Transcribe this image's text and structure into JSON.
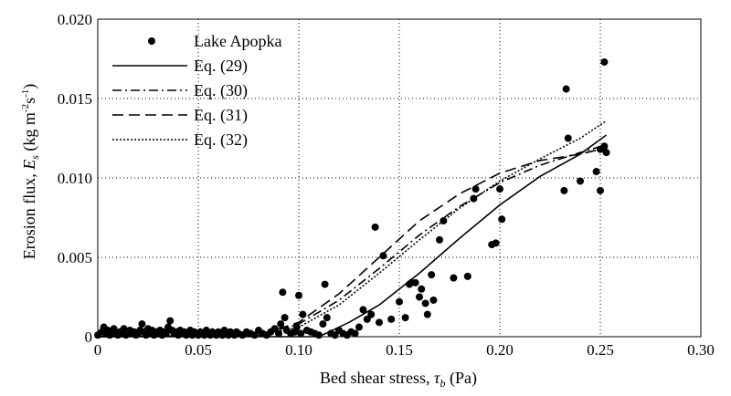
{
  "chart_data": {
    "type": "scatter",
    "title": "",
    "xlabel": "Bed shear stress, τb (Pa)",
    "xlabel_main": "Bed shear stress, ",
    "xlabel_sym": "τ",
    "xlabel_sub": "b",
    "xlabel_unit": " (Pa)",
    "ylabel": "Erosion flux, Es (kg m-2 s-1)",
    "ylabel_main": "Erosion flux, ",
    "ylabel_sym": "E",
    "ylabel_sub": "s",
    "ylabel_unit_pre": " (kg m",
    "ylabel_sup1": "-2",
    "ylabel_mid": "s",
    "ylabel_sup2": "-1",
    "ylabel_end": ")",
    "xlim": [
      0,
      0.3
    ],
    "ylim": [
      0,
      0.02
    ],
    "xticks": [
      "0",
      "0.05",
      "0.10",
      "0.15",
      "0.20",
      "0.25",
      "0.30"
    ],
    "yticks": [
      "0",
      "0.005",
      "0.010",
      "0.015",
      "0.020"
    ],
    "grid": "dotted",
    "legend_position": "top-left",
    "series": [
      {
        "name": "Lake Apopka",
        "style": "points",
        "points": [
          [
            0.0,
            0.0001
          ],
          [
            0.002,
            0.0003
          ],
          [
            0.003,
            0.0006
          ],
          [
            0.004,
            0.0002
          ],
          [
            0.005,
            0.0004
          ],
          [
            0.006,
            0.0001
          ],
          [
            0.007,
            0.0003
          ],
          [
            0.008,
            0.0005
          ],
          [
            0.009,
            0.0002
          ],
          [
            0.01,
            0.0001
          ],
          [
            0.011,
            0.0003
          ],
          [
            0.012,
            0.0002
          ],
          [
            0.013,
            0.0005
          ],
          [
            0.014,
            0.0001
          ],
          [
            0.016,
            0.0004
          ],
          [
            0.017,
            0.0002
          ],
          [
            0.018,
            0.0003
          ],
          [
            0.019,
            0.0001
          ],
          [
            0.02,
            0.0002
          ],
          [
            0.021,
            0.0004
          ],
          [
            0.022,
            0.0008
          ],
          [
            0.023,
            0.0003
          ],
          [
            0.024,
            0.0001
          ],
          [
            0.025,
            0.0005
          ],
          [
            0.026,
            0.0002
          ],
          [
            0.027,
            0.0004
          ],
          [
            0.028,
            0.0001
          ],
          [
            0.029,
            0.0003
          ],
          [
            0.03,
            0.0002
          ],
          [
            0.031,
            0.0004
          ],
          [
            0.032,
            0.0001
          ],
          [
            0.033,
            0.0003
          ],
          [
            0.034,
            0.0002
          ],
          [
            0.035,
            0.0006
          ],
          [
            0.036,
            0.001
          ],
          [
            0.037,
            0.0004
          ],
          [
            0.038,
            0.0002
          ],
          [
            0.039,
            0.0003
          ],
          [
            0.04,
            0.0001
          ],
          [
            0.041,
            0.0004
          ],
          [
            0.042,
            0.0002
          ],
          [
            0.043,
            0.0003
          ],
          [
            0.044,
            0.0001
          ],
          [
            0.045,
            0.0002
          ],
          [
            0.046,
            0.0004
          ],
          [
            0.047,
            0.0001
          ],
          [
            0.048,
            0.0003
          ],
          [
            0.049,
            0.0002
          ],
          [
            0.05,
            0.0001
          ],
          [
            0.051,
            0.0003
          ],
          [
            0.052,
            0.0002
          ],
          [
            0.053,
            0.0001
          ],
          [
            0.054,
            0.0004
          ],
          [
            0.055,
            0.0002
          ],
          [
            0.056,
            0.0001
          ],
          [
            0.057,
            0.0003
          ],
          [
            0.058,
            0.0002
          ],
          [
            0.059,
            0.0001
          ],
          [
            0.06,
            0.0003
          ],
          [
            0.061,
            0.0002
          ],
          [
            0.062,
            0.0001
          ],
          [
            0.063,
            0.0004
          ],
          [
            0.064,
            0.0002
          ],
          [
            0.065,
            0.0001
          ],
          [
            0.066,
            0.0003
          ],
          [
            0.067,
            0.0002
          ],
          [
            0.068,
            0.0001
          ],
          [
            0.069,
            0.0003
          ],
          [
            0.07,
            0.0002
          ],
          [
            0.072,
            0.0001
          ],
          [
            0.074,
            0.0003
          ],
          [
            0.076,
            0.0002
          ],
          [
            0.078,
            0.0001
          ],
          [
            0.08,
            0.0004
          ],
          [
            0.082,
            0.0002
          ],
          [
            0.084,
            0.0001
          ],
          [
            0.086,
            0.0003
          ],
          [
            0.088,
            0.0005
          ],
          [
            0.09,
            0.0002
          ],
          [
            0.091,
            0.0008
          ],
          [
            0.092,
            0.0028
          ],
          [
            0.093,
            0.0012
          ],
          [
            0.094,
            0.0004
          ],
          [
            0.096,
            0.0002
          ],
          [
            0.098,
            0.0003
          ],
          [
            0.099,
            0.0006
          ],
          [
            0.1,
            0.0026
          ],
          [
            0.101,
            0.0002
          ],
          [
            0.102,
            0.0014
          ],
          [
            0.104,
            0.0004
          ],
          [
            0.106,
            0.0003
          ],
          [
            0.108,
            0.0002
          ],
          [
            0.11,
            0.0001
          ],
          [
            0.112,
            0.0008
          ],
          [
            0.113,
            0.0033
          ],
          [
            0.114,
            0.0012
          ],
          [
            0.116,
            0.0002
          ],
          [
            0.118,
            0.0001
          ],
          [
            0.12,
            0.0004
          ],
          [
            0.122,
            0.0002
          ],
          [
            0.124,
            0.0001
          ],
          [
            0.126,
            0.0003
          ],
          [
            0.128,
            0.0002
          ],
          [
            0.13,
            0.0006
          ],
          [
            0.132,
            0.0017
          ],
          [
            0.134,
            0.0011
          ],
          [
            0.136,
            0.0014
          ],
          [
            0.138,
            0.0069
          ],
          [
            0.14,
            0.0009
          ],
          [
            0.142,
            0.0051
          ],
          [
            0.146,
            0.0011
          ],
          [
            0.15,
            0.0022
          ],
          [
            0.153,
            0.0012
          ],
          [
            0.155,
            0.0033
          ],
          [
            0.156,
            0.0034
          ],
          [
            0.158,
            0.0034
          ],
          [
            0.16,
            0.0025
          ],
          [
            0.161,
            0.003
          ],
          [
            0.163,
            0.0021
          ],
          [
            0.164,
            0.0014
          ],
          [
            0.166,
            0.0039
          ],
          [
            0.167,
            0.0023
          ],
          [
            0.17,
            0.0061
          ],
          [
            0.172,
            0.0073
          ],
          [
            0.177,
            0.0037
          ],
          [
            0.184,
            0.0038
          ],
          [
            0.187,
            0.0087
          ],
          [
            0.188,
            0.0093
          ],
          [
            0.196,
            0.0058
          ],
          [
            0.198,
            0.0059
          ],
          [
            0.2,
            0.0093
          ],
          [
            0.201,
            0.0074
          ],
          [
            0.232,
            0.0092
          ],
          [
            0.233,
            0.0156
          ],
          [
            0.234,
            0.0125
          ],
          [
            0.24,
            0.0098
          ],
          [
            0.248,
            0.0104
          ],
          [
            0.25,
            0.0118
          ],
          [
            0.25,
            0.0092
          ],
          [
            0.252,
            0.012
          ],
          [
            0.252,
            0.0173
          ],
          [
            0.253,
            0.0116
          ]
        ]
      },
      {
        "name": "Eq. (29)",
        "style": "solid",
        "points": [
          [
            0.0,
            0.0
          ],
          [
            0.11,
            0.0
          ],
          [
            0.115,
            0.0003
          ],
          [
            0.125,
            0.0009
          ],
          [
            0.14,
            0.002
          ],
          [
            0.16,
            0.004
          ],
          [
            0.18,
            0.0062
          ],
          [
            0.2,
            0.0083
          ],
          [
            0.22,
            0.0101
          ],
          [
            0.24,
            0.0115
          ],
          [
            0.253,
            0.0127
          ]
        ]
      },
      {
        "name": "Eq. (30)",
        "style": "dashdot",
        "points": [
          [
            0.0,
            0.0
          ],
          [
            0.08,
            0.0001
          ],
          [
            0.1,
            0.0008
          ],
          [
            0.12,
            0.0023
          ],
          [
            0.14,
            0.0043
          ],
          [
            0.16,
            0.0064
          ],
          [
            0.18,
            0.0082
          ],
          [
            0.2,
            0.0097
          ],
          [
            0.22,
            0.0108
          ],
          [
            0.24,
            0.0116
          ],
          [
            0.253,
            0.0121
          ]
        ]
      },
      {
        "name": "Eq. (31)",
        "style": "dashed",
        "points": [
          [
            0.0,
            0.0
          ],
          [
            0.08,
            0.0001
          ],
          [
            0.1,
            0.0009
          ],
          [
            0.12,
            0.0027
          ],
          [
            0.14,
            0.005
          ],
          [
            0.16,
            0.0073
          ],
          [
            0.18,
            0.009
          ],
          [
            0.2,
            0.0103
          ],
          [
            0.22,
            0.0111
          ],
          [
            0.24,
            0.0115
          ],
          [
            0.253,
            0.0119
          ]
        ]
      },
      {
        "name": "Eq. (32)",
        "style": "dotted",
        "points": [
          [
            0.0,
            0.0
          ],
          [
            0.08,
            0.0001
          ],
          [
            0.1,
            0.0006
          ],
          [
            0.12,
            0.002
          ],
          [
            0.14,
            0.004
          ],
          [
            0.16,
            0.0061
          ],
          [
            0.18,
            0.0081
          ],
          [
            0.2,
            0.0098
          ],
          [
            0.22,
            0.0112
          ],
          [
            0.24,
            0.0125
          ],
          [
            0.253,
            0.0136
          ]
        ]
      }
    ]
  }
}
